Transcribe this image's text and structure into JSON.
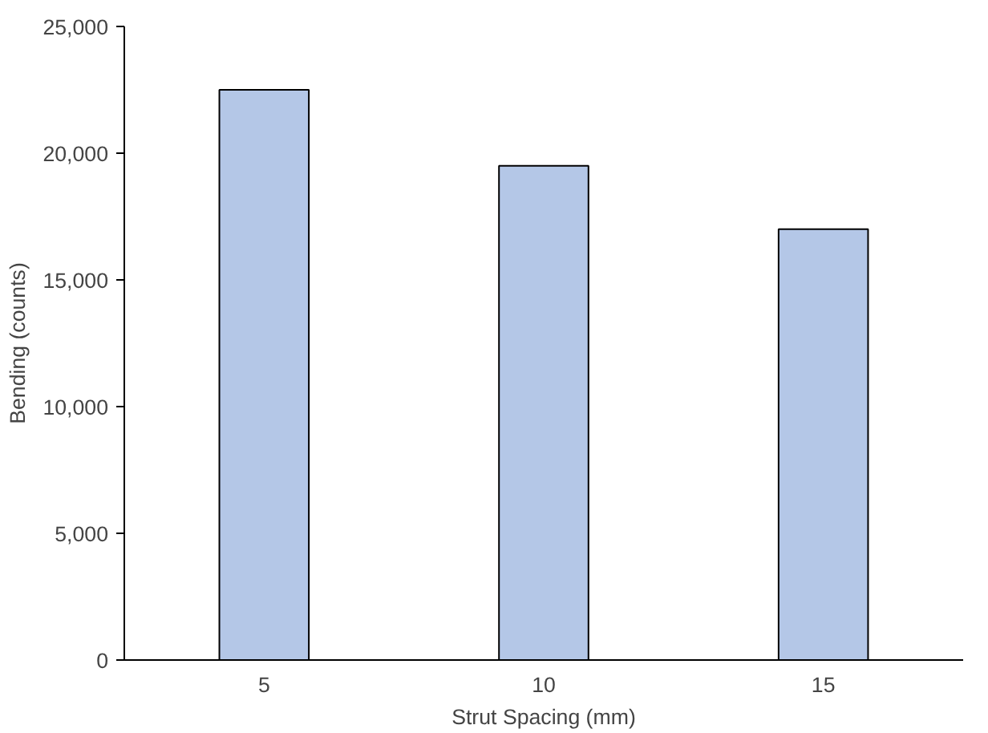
{
  "chart_data": {
    "type": "bar",
    "xlabel": "Strut Spacing (mm)",
    "ylabel": "Bending (counts)",
    "categories": [
      "5",
      "10",
      "15"
    ],
    "values": [
      22500,
      19500,
      17000
    ],
    "color": "#b4c7e7",
    "ylim": [
      0,
      25000
    ],
    "yticks": [
      {
        "value": 0,
        "label": "0"
      },
      {
        "value": 5000,
        "label": "5,000"
      },
      {
        "value": 10000,
        "label": "10,000"
      },
      {
        "value": 15000,
        "label": "15,000"
      },
      {
        "value": 20000,
        "label": "20,000"
      },
      {
        "value": 25000,
        "label": "25,000"
      }
    ],
    "grid": false
  }
}
